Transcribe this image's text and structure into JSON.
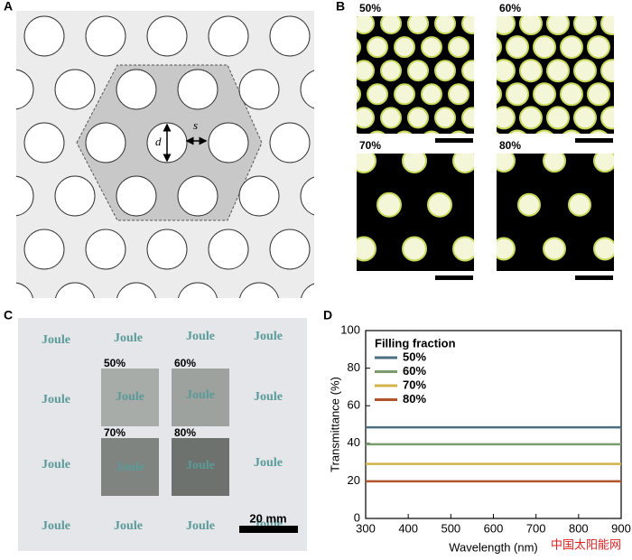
{
  "panels": {
    "a": {
      "label": "A",
      "d": "d",
      "s": "s"
    },
    "b": {
      "label": "B",
      "images": [
        "50%",
        "60%",
        "70%",
        "80%"
      ]
    },
    "c": {
      "label": "C",
      "samples": [
        "50%",
        "60%",
        "70%",
        "80%"
      ],
      "text": [
        "Joule",
        "Joule",
        "Joule",
        "Joule",
        "Joule",
        "Joule",
        "Joule",
        "Joule",
        "Joule",
        "Joule",
        "Joule",
        "Joule",
        "Joule",
        "Joule",
        "Joule",
        "Joule"
      ],
      "scale_bar": "20 mm"
    },
    "d": {
      "label": "D"
    }
  },
  "chart_data": {
    "type": "line",
    "xlabel": "Wavelength (nm)",
    "ylabel": "Transmittance (%)",
    "legend_title": "Filling fraction",
    "legend": "upper left",
    "x": [
      300,
      900
    ],
    "series": [
      {
        "name": "50%",
        "color": "#4c6f80",
        "values": [
          48.5,
          48.5
        ]
      },
      {
        "name": "60%",
        "color": "#7b9c6f",
        "values": [
          39.5,
          39.5
        ]
      },
      {
        "name": "70%",
        "color": "#d2b24a",
        "values": [
          29,
          29
        ]
      },
      {
        "name": "80%",
        "color": "#b3532c",
        "values": [
          19.8,
          19.8
        ]
      }
    ],
    "xlim": [
      300,
      900
    ],
    "xticks": [
      300,
      400,
      500,
      600,
      700,
      800,
      900
    ],
    "ylim": [
      0,
      100
    ],
    "yticks": [
      0,
      20,
      40,
      60,
      80,
      100
    ]
  },
  "watermark": "中国太阳能网"
}
